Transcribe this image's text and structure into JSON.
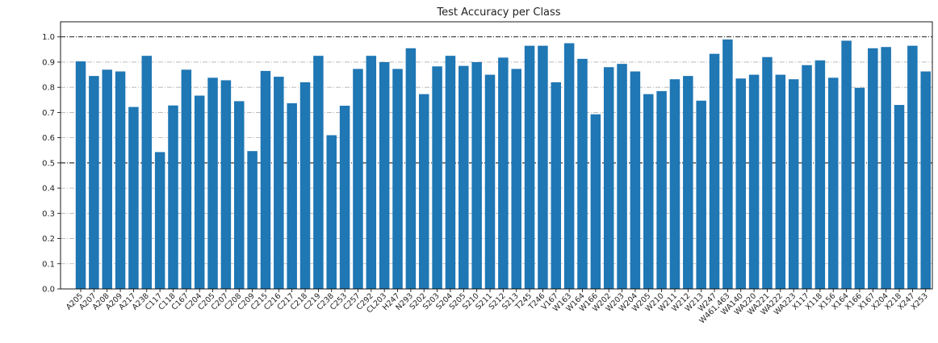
{
  "chart_data": {
    "type": "bar",
    "title": "Test Accuracy per Class",
    "xlabel": "",
    "ylabel": "",
    "ylim": [
      0,
      1.06
    ],
    "yticks": [
      "0.0",
      "0.1",
      "0.2",
      "0.3",
      "0.4",
      "0.5",
      "0.6",
      "0.7",
      "0.8",
      "0.9",
      "1.0"
    ],
    "grid": "horizontal dash-dot",
    "reference_lines": [
      0.5,
      1.0
    ],
    "bar_color": "#1f77b4",
    "categories": [
      "A205",
      "A207",
      "A208",
      "A209",
      "A217",
      "A238",
      "C117",
      "C118",
      "C167",
      "C204",
      "C205",
      "C207",
      "C208",
      "C209",
      "C215",
      "C216",
      "C217",
      "C218",
      "C219",
      "C238",
      "C253",
      "C257",
      "C292",
      "CL203",
      "H247",
      "N293",
      "S202",
      "S203",
      "S204",
      "S205",
      "S210",
      "S211",
      "S212",
      "S213",
      "T245",
      "T246",
      "V167",
      "W163",
      "W164",
      "W166",
      "W202",
      "W203",
      "W204",
      "W205",
      "W210",
      "W211",
      "W212",
      "W213",
      "W247",
      "W461,463",
      "WA140",
      "WA220",
      "WA221",
      "WA222",
      "WA223",
      "X117",
      "X118",
      "X156",
      "X164",
      "X166",
      "X167",
      "X204",
      "X218",
      "X247",
      "X253"
    ],
    "values": [
      0.903,
      0.845,
      0.87,
      0.863,
      0.722,
      0.925,
      0.543,
      0.728,
      0.87,
      0.767,
      0.838,
      0.828,
      0.745,
      0.547,
      0.865,
      0.842,
      0.737,
      0.82,
      0.925,
      0.61,
      0.727,
      0.873,
      0.925,
      0.9,
      0.873,
      0.955,
      0.773,
      0.883,
      0.925,
      0.885,
      0.9,
      0.85,
      0.918,
      0.873,
      0.965,
      0.965,
      0.82,
      0.975,
      0.913,
      0.693,
      0.88,
      0.893,
      0.863,
      0.773,
      0.785,
      0.832,
      0.845,
      0.747,
      0.933,
      0.99,
      0.835,
      0.85,
      0.92,
      0.85,
      0.832,
      0.888,
      0.907,
      0.838,
      0.985,
      0.798,
      0.955,
      0.96,
      0.73,
      0.965,
      0.863
    ]
  }
}
